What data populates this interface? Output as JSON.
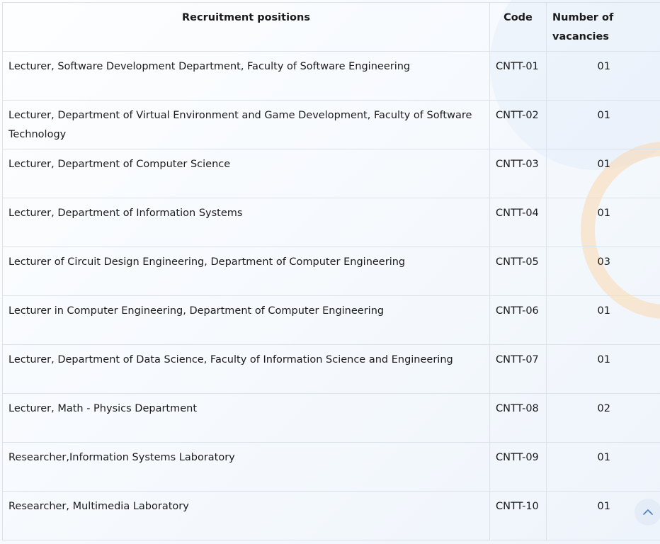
{
  "table": {
    "headers": {
      "position": "Recruitment positions",
      "code": "Code",
      "vacancies": "Number of vacancies"
    },
    "rows": [
      {
        "position": "Lecturer, Software Development Department, Faculty of Software Engineering",
        "code": "CNTT-01",
        "vacancies": "01"
      },
      {
        "position": "Lecturer, Department of Virtual Environment and Game Development, Faculty of Software Technology",
        "code": "CNTT-02",
        "vacancies": "01"
      },
      {
        "position": "Lecturer, Department of Computer Science",
        "code": "CNTT-03",
        "vacancies": "01"
      },
      {
        "position": "Lecturer, Department of Information Systems",
        "code": "CNTT-04",
        "vacancies": "01"
      },
      {
        "position": "Lecturer of Circuit Design Engineering, Department of Computer Engineering",
        "code": "CNTT-05",
        "vacancies": "03"
      },
      {
        "position": "Lecturer in Computer Engineering, Department of Computer Engineering",
        "code": "CNTT-06",
        "vacancies": "01"
      },
      {
        "position": "Lecturer, Department of Data Science, Faculty of Information Science and Engineering",
        "code": "CNTT-07",
        "vacancies": "01"
      },
      {
        "position": "Lecturer, Math - Physics Department",
        "code": "CNTT-08",
        "vacancies": "02"
      },
      {
        "position": "Researcher,Information Systems Laboratory",
        "code": "CNTT-09",
        "vacancies": "01"
      },
      {
        "position": "Researcher, Multimedia Laboratory",
        "code": "CNTT-10",
        "vacancies": "01"
      }
    ]
  },
  "scroll_top_button": {
    "icon": "chevron-up-icon",
    "color": "#4a7fc1"
  },
  "colors": {
    "border": "#dbe2ea",
    "decor_ring": "#fdd1a0"
  }
}
